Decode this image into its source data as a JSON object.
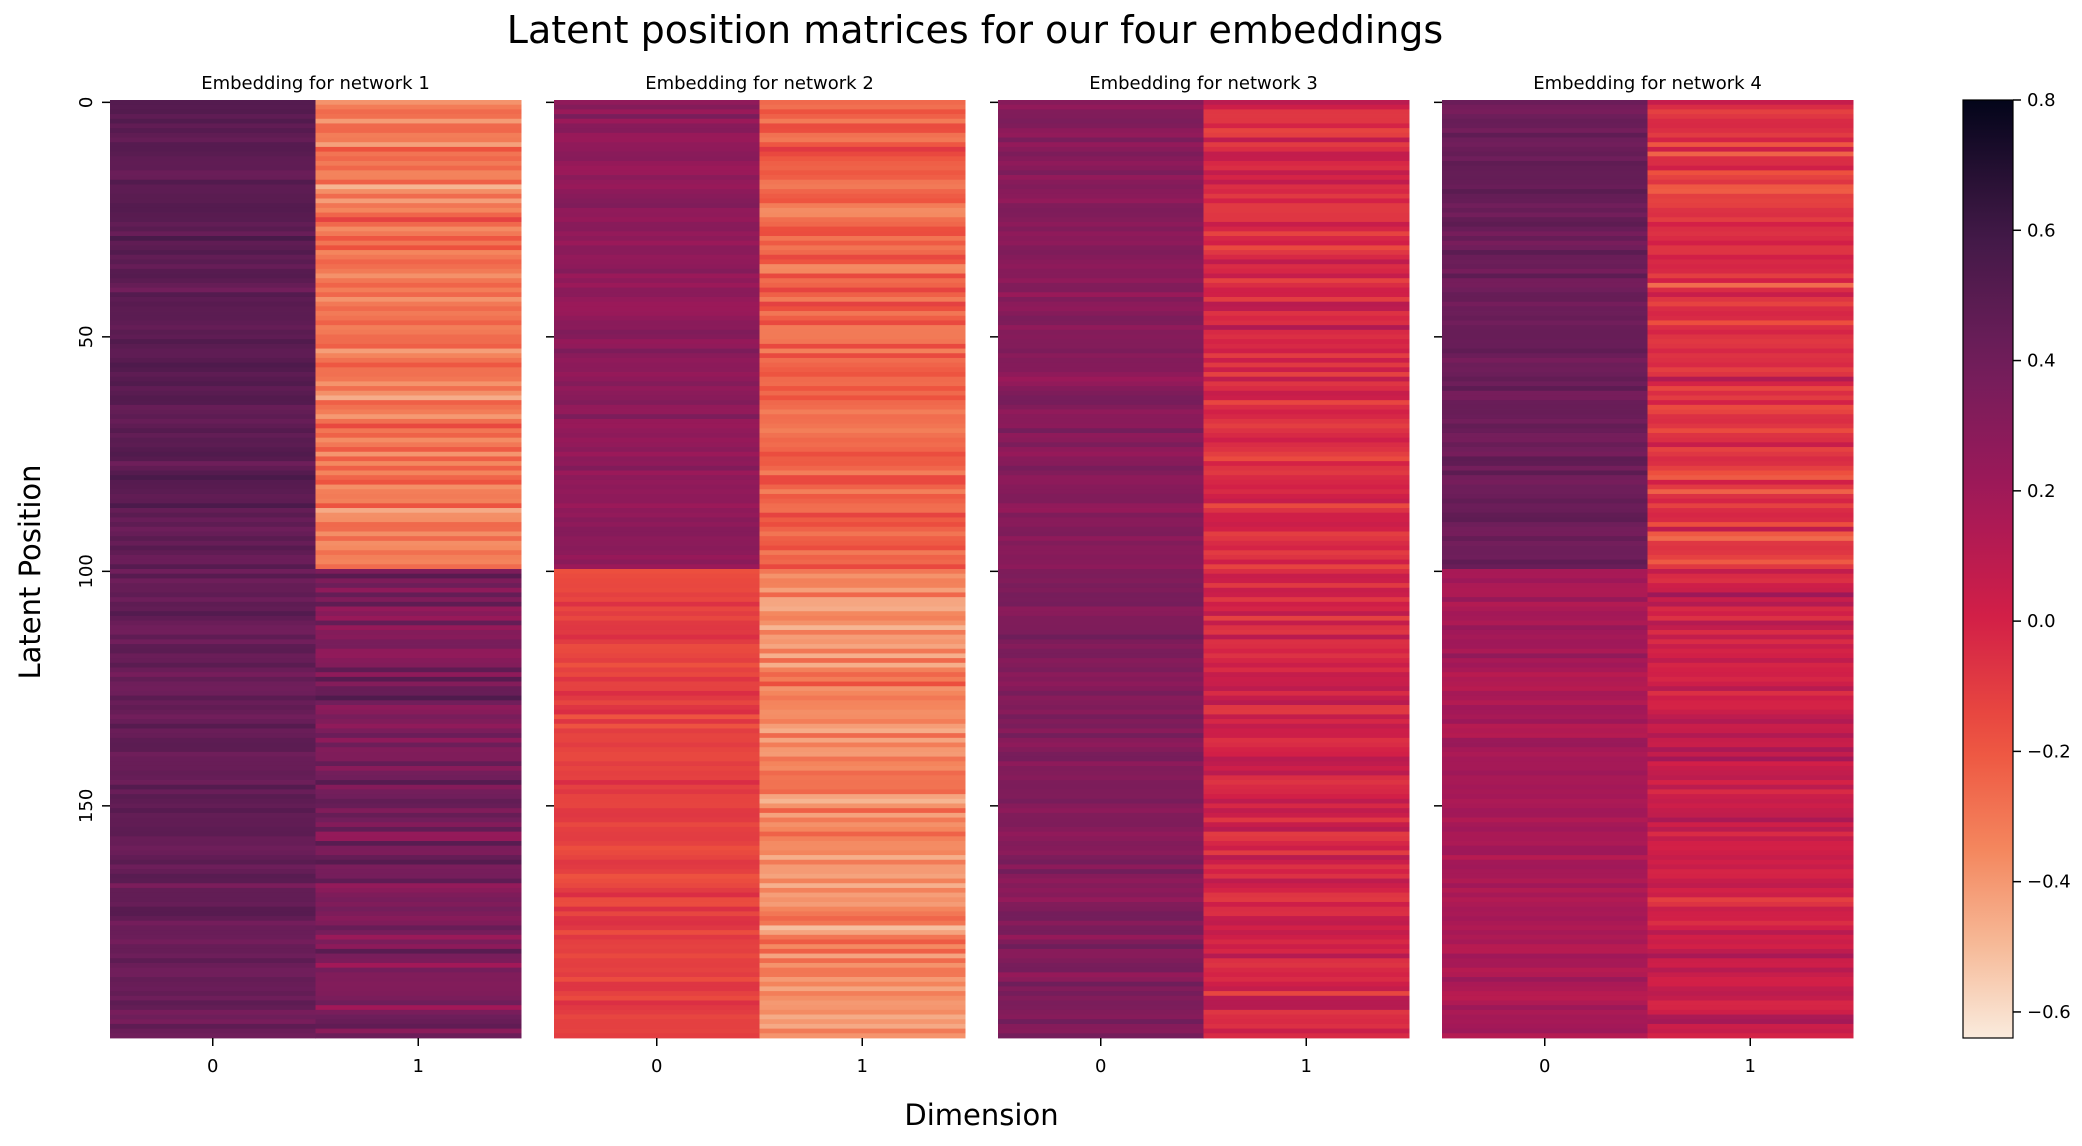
{
  "chart_data": {
    "type": "heatmap",
    "title": "Latent position matrices for our four embeddings",
    "xlabel": "Dimension",
    "ylabel": "Latent Position",
    "colorbar": {
      "min": -0.64,
      "max": 0.8,
      "ticks": [
        -0.6,
        -0.4,
        -0.2,
        0.0,
        0.2,
        0.4,
        0.6,
        0.8
      ],
      "tick_labels": [
        "−0.6",
        "−0.4",
        "−0.2",
        "0.0",
        "0.2",
        "0.4",
        "0.6",
        "0.8"
      ],
      "colormap": "rocket_r"
    },
    "y_ticks": [
      0,
      50,
      100,
      150
    ],
    "y_tick_labels": [
      "0",
      "50",
      "100",
      "150"
    ],
    "n_rows": 200,
    "x_ticks": [
      0,
      1
    ],
    "x_tick_labels": [
      "0",
      "1"
    ],
    "panels": [
      {
        "title": "Embedding for network 1",
        "columns": [
          {
            "dimension": "0",
            "segments": [
              {
                "rows": [
                  0,
                  100
                ],
                "mean": 0.48
              },
              {
                "rows": [
                  100,
                  200
                ],
                "mean": 0.44
              }
            ]
          },
          {
            "dimension": "1",
            "segments": [
              {
                "rows": [
                  0,
                  100
                ],
                "mean": -0.3
              },
              {
                "rows": [
                  100,
                  200
                ],
                "mean": 0.36
              }
            ]
          }
        ]
      },
      {
        "title": "Embedding for network 2",
        "columns": [
          {
            "dimension": "0",
            "segments": [
              {
                "rows": [
                  0,
                  100
                ],
                "mean": 0.27
              },
              {
                "rows": [
                  100,
                  200
                ],
                "mean": -0.12
              }
            ]
          },
          {
            "dimension": "1",
            "segments": [
              {
                "rows": [
                  0,
                  100
                ],
                "mean": -0.26
              },
              {
                "rows": [
                  100,
                  200
                ],
                "mean": -0.35
              }
            ]
          }
        ]
      },
      {
        "title": "Embedding for network 3",
        "columns": [
          {
            "dimension": "0",
            "segments": [
              {
                "rows": [
                  0,
                  100
                ],
                "mean": 0.3
              },
              {
                "rows": [
                  100,
                  200
                ],
                "mean": 0.33
              }
            ]
          },
          {
            "dimension": "1",
            "segments": [
              {
                "rows": [
                  0,
                  100
                ],
                "mean": -0.02
              },
              {
                "rows": [
                  100,
                  200
                ],
                "mean": 0.0
              }
            ]
          }
        ]
      },
      {
        "title": "Embedding for network 4",
        "columns": [
          {
            "dimension": "0",
            "segments": [
              {
                "rows": [
                  0,
                  100
                ],
                "mean": 0.42
              },
              {
                "rows": [
                  100,
                  200
                ],
                "mean": 0.17
              }
            ]
          },
          {
            "dimension": "1",
            "segments": [
              {
                "rows": [
                  0,
                  100
                ],
                "mean": -0.08
              },
              {
                "rows": [
                  100,
                  200
                ],
                "mean": 0.04
              }
            ]
          }
        ]
      }
    ]
  }
}
